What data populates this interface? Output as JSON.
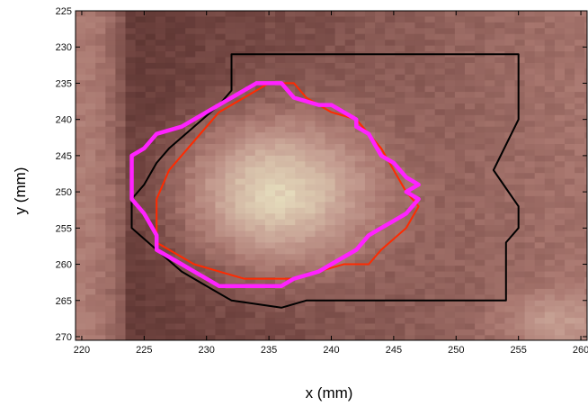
{
  "chart_data": {
    "type": "heatmap",
    "title": "",
    "xlabel": "x (mm)",
    "ylabel": "y (mm)",
    "xlim": [
      219.5,
      260.5
    ],
    "ylim": [
      225,
      270.5
    ],
    "y_inverted": true,
    "x_ticks": [
      220,
      225,
      230,
      235,
      240,
      245,
      250,
      255,
      260
    ],
    "y_ticks": [
      225,
      230,
      235,
      240,
      245,
      250,
      255,
      260,
      265,
      270
    ],
    "grid": false,
    "legend": "none",
    "colormap": "pink",
    "colors": {
      "outline_black": "#000000",
      "outline_red": "#ff2a00",
      "outline_magenta": "#ff22ff"
    },
    "series": [
      {
        "style": "black-thin",
        "x": [
          232,
          232,
          231,
          229,
          227,
          226,
          225,
          224,
          224,
          226,
          228,
          230,
          232,
          236,
          238,
          245,
          250,
          252,
          253,
          254,
          254,
          254,
          255,
          255,
          253,
          255,
          255,
          232
        ],
        "y": [
          231,
          236,
          238,
          241,
          244,
          246,
          249,
          251,
          255,
          258,
          261,
          263,
          265,
          266,
          265,
          265,
          265,
          265,
          265,
          265,
          260,
          257,
          255,
          252,
          247,
          240,
          231,
          231
        ]
      },
      {
        "style": "red-thin",
        "x": [
          235,
          237,
          238,
          240,
          242,
          243,
          244,
          245,
          246,
          247,
          246,
          244,
          243,
          241,
          239,
          237,
          235,
          233,
          231,
          229,
          228,
          227,
          226,
          226,
          226,
          227,
          229,
          231,
          233,
          235
        ],
        "y": [
          235,
          235,
          237,
          239,
          240,
          242,
          244,
          247,
          250,
          252,
          255,
          258,
          260,
          260,
          261,
          262,
          262,
          262,
          261,
          260,
          259,
          258,
          257,
          255,
          251,
          247,
          243,
          239,
          237,
          235
        ]
      },
      {
        "style": "magenta-thick",
        "x": [
          234,
          236,
          237,
          239,
          240,
          241,
          242,
          242,
          243,
          244,
          245,
          246,
          247,
          246,
          247,
          246,
          245,
          244,
          243,
          242,
          241,
          240,
          239,
          237,
          236,
          235,
          233,
          231,
          230,
          229,
          228,
          227,
          226,
          226,
          225,
          224,
          224,
          225,
          226,
          228,
          230,
          231,
          232,
          234
        ],
        "y": [
          235,
          235,
          237,
          238,
          238,
          239,
          240,
          241,
          242,
          245,
          246,
          248,
          249,
          250,
          251,
          253,
          254,
          255,
          256,
          258,
          259,
          260,
          261,
          262,
          263,
          263,
          263,
          263,
          262,
          261,
          260,
          259,
          258,
          256,
          253,
          251,
          245,
          244,
          242,
          241,
          239,
          238,
          237,
          235
        ]
      }
    ]
  }
}
